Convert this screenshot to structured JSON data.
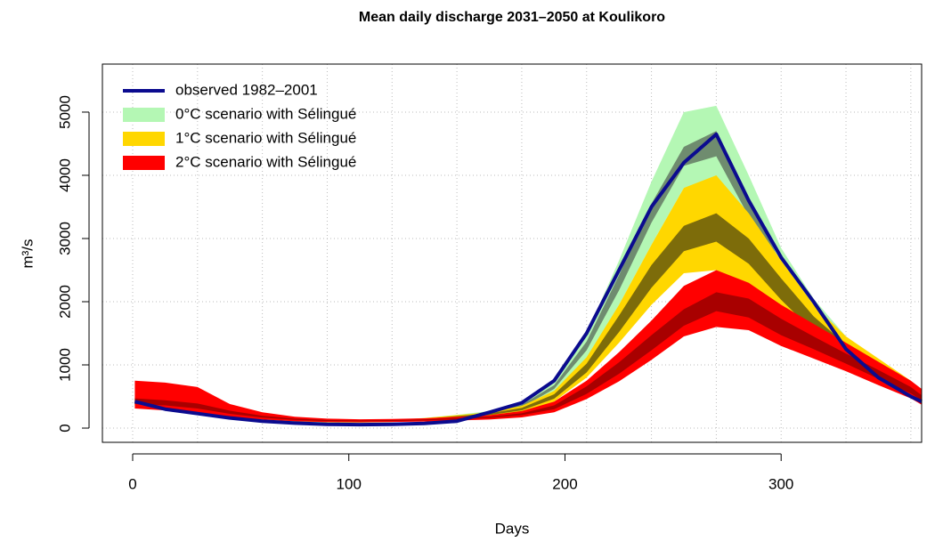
{
  "chart_data": {
    "type": "band",
    "title": "Mean daily discharge 2031–2050 at Koulikoro",
    "xlabel": "Days",
    "ylabel": "m³/s",
    "x": [
      1,
      15,
      30,
      45,
      60,
      75,
      90,
      105,
      120,
      135,
      150,
      165,
      180,
      195,
      210,
      225,
      240,
      255,
      270,
      285,
      300,
      315,
      330,
      345,
      360,
      365
    ],
    "xlim": [
      -14,
      365
    ],
    "ylim": [
      -225,
      5760
    ],
    "xticks": [
      0,
      100,
      200,
      300
    ],
    "yticks": [
      0,
      1000,
      2000,
      3000,
      4000,
      5000
    ],
    "xgrid": [
      0,
      30,
      60,
      90,
      120,
      150,
      180,
      210,
      240,
      270,
      300,
      330,
      360
    ],
    "grid": true,
    "series": [
      {
        "name": "observed 1982–2001",
        "color": "#0b0b8f",
        "values": [
          420,
          300,
          230,
          160,
          110,
          80,
          60,
          55,
          60,
          75,
          110,
          250,
          400,
          750,
          1500,
          2500,
          3500,
          4200,
          4650,
          3600,
          2700,
          2000,
          1250,
          800,
          500,
          420
        ]
      }
    ],
    "bands": [
      {
        "name": "0°C scenario with Sélingué",
        "color": "#b4f7b4",
        "inner_color": "#6f8c6f",
        "outer_lower": [
          350,
          290,
          220,
          170,
          130,
          100,
          85,
          85,
          95,
          120,
          155,
          200,
          300,
          560,
          1100,
          1950,
          2900,
          3800,
          3950,
          3000,
          2200,
          1600,
          1150,
          800,
          520,
          420
        ],
        "outer_upper": [
          460,
          380,
          300,
          240,
          180,
          140,
          120,
          120,
          130,
          160,
          210,
          270,
          410,
          760,
          1500,
          2650,
          3900,
          5000,
          5100,
          4000,
          2850,
          2050,
          1450,
          1000,
          680,
          540
        ],
        "inner_lower": [
          380,
          315,
          245,
          190,
          142,
          112,
          95,
          95,
          104,
          133,
          170,
          218,
          330,
          620,
          1230,
          2180,
          3250,
          4150,
          4300,
          3350,
          2400,
          1720,
          1250,
          870,
          575,
          460
        ],
        "inner_upper": [
          420,
          345,
          275,
          210,
          158,
          128,
          105,
          105,
          116,
          147,
          190,
          242,
          370,
          680,
          1370,
          2420,
          3550,
          4450,
          4700,
          3650,
          2600,
          1880,
          1350,
          930,
          625,
          500
        ]
      },
      {
        "name": "1°C scenario with Sélingué",
        "color": "#ffd700",
        "inner_color": "#7d6c0a",
        "outer_lower": [
          360,
          300,
          240,
          180,
          140,
          110,
          92,
          88,
          97,
          122,
          155,
          190,
          255,
          420,
          800,
          1350,
          1950,
          2450,
          2500,
          2250,
          1800,
          1400,
          1100,
          820,
          560,
          430
        ],
        "outer_upper": [
          480,
          400,
          320,
          240,
          180,
          140,
          118,
          112,
          123,
          158,
          205,
          250,
          350,
          590,
          1120,
          1950,
          2900,
          3800,
          4000,
          3400,
          2650,
          1950,
          1450,
          1100,
          750,
          570
        ],
        "inner_lower": [
          395,
          330,
          262,
          198,
          152,
          118,
          100,
          95,
          105,
          133,
          170,
          207,
          280,
          465,
          880,
          1520,
          2220,
          2800,
          2950,
          2600,
          2030,
          1530,
          1180,
          890,
          610,
          470
        ],
        "inner_upper": [
          445,
          370,
          298,
          222,
          168,
          132,
          110,
          105,
          115,
          147,
          190,
          233,
          320,
          535,
          1020,
          1780,
          2580,
          3200,
          3400,
          3000,
          2370,
          1770,
          1320,
          1010,
          690,
          530
        ]
      },
      {
        "name": "2°C scenario with Sélingué",
        "color": "#ff0000",
        "inner_color": "#a80000",
        "outer_lower": [
          310,
          280,
          240,
          175,
          135,
          110,
          96,
          92,
          97,
          105,
          120,
          135,
          170,
          250,
          460,
          740,
          1080,
          1450,
          1600,
          1550,
          1300,
          1100,
          900,
          680,
          470,
          370
        ],
        "outer_upper": [
          750,
          720,
          650,
          380,
          250,
          180,
          150,
          140,
          145,
          155,
          180,
          205,
          270,
          420,
          750,
          1200,
          1700,
          2250,
          2500,
          2300,
          1950,
          1650,
          1350,
          1050,
          750,
          620
        ],
        "inner_lower": [
          380,
          360,
          310,
          225,
          165,
          130,
          112,
          108,
          113,
          122,
          140,
          158,
          205,
          300,
          540,
          860,
          1230,
          1620,
          1850,
          1750,
          1470,
          1250,
          1020,
          780,
          550,
          440
        ],
        "inner_upper": [
          470,
          440,
          390,
          275,
          195,
          150,
          128,
          122,
          127,
          138,
          160,
          182,
          235,
          360,
          660,
          1040,
          1470,
          1880,
          2150,
          2050,
          1730,
          1450,
          1180,
          920,
          650,
          520
        ]
      }
    ]
  }
}
